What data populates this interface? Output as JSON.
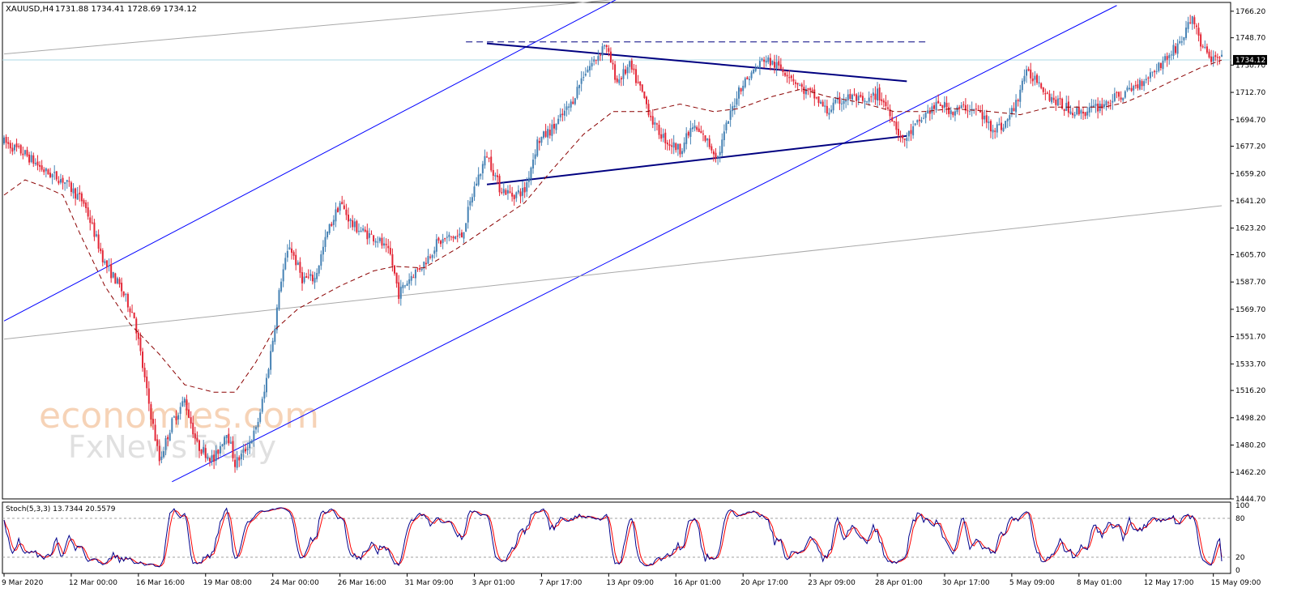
{
  "header": {
    "symbol": "XAUUSD,H4",
    "ohlc": "1731.88 1734.41 1728.69 1734.12"
  },
  "price_axis": {
    "ticks": [
      "1766.20",
      "1748.70",
      "1730.70",
      "1712.70",
      "1694.70",
      "1677.20",
      "1659.20",
      "1641.20",
      "1623.20",
      "1605.70",
      "1587.70",
      "1569.70",
      "1551.70",
      "1533.70",
      "1516.20",
      "1498.20",
      "1480.20",
      "1462.20",
      "1444.70"
    ],
    "current_price_label": "1734.12",
    "current_price": 1734.12
  },
  "time_axis": {
    "ticks": [
      "9 Mar 2020",
      "12 Mar 00:00",
      "16 Mar 16:00",
      "19 Mar 08:00",
      "24 Mar 00:00",
      "26 Mar 16:00",
      "31 Mar 09:00",
      "3 Apr 01:00",
      "7 Apr 17:00",
      "13 Apr 09:00",
      "16 Apr 01:00",
      "20 Apr 17:00",
      "23 Apr 09:00",
      "28 Apr 01:00",
      "30 Apr 17:00",
      "5 May 09:00",
      "8 May 01:00",
      "12 May 17:00",
      "15 May 09:00"
    ]
  },
  "stochastic": {
    "label": "Stoch(5,3,3) 13.7344 20.5579",
    "levels": [
      "100",
      "80",
      "20",
      "0"
    ],
    "main_color": "#00008b",
    "signal_color": "#ff0000"
  },
  "watermark": {
    "line1": "economies.com",
    "line2": "FxNewsToday"
  },
  "colors": {
    "bull_candle": "#4682b4",
    "bear_candle": "#e32636",
    "channel": "#0000ff",
    "triangle": "#000080",
    "moving_average": "#8b0000",
    "current_price_line": "#add8e6"
  },
  "chart_data": {
    "type": "candlestick",
    "symbol": "XAUUSD",
    "timeframe": "H4",
    "ylim": [
      1444.7,
      1770
    ],
    "price_path": [
      [
        0,
        1680
      ],
      [
        10,
        1672
      ],
      [
        20,
        1660
      ],
      [
        28,
        1655
      ],
      [
        38,
        1640
      ],
      [
        48,
        1600
      ],
      [
        55,
        1585
      ],
      [
        62,
        1565
      ],
      [
        68,
        1515
      ],
      [
        74,
        1470
      ],
      [
        80,
        1495
      ],
      [
        86,
        1510
      ],
      [
        92,
        1480
      ],
      [
        100,
        1470
      ],
      [
        106,
        1490
      ],
      [
        110,
        1468
      ],
      [
        114,
        1475
      ],
      [
        120,
        1490
      ],
      [
        124,
        1515
      ],
      [
        128,
        1550
      ],
      [
        132,
        1590
      ],
      [
        136,
        1612
      ],
      [
        142,
        1590
      ],
      [
        148,
        1590
      ],
      [
        154,
        1620
      ],
      [
        160,
        1640
      ],
      [
        166,
        1625
      ],
      [
        172,
        1620
      ],
      [
        178,
        1616
      ],
      [
        184,
        1605
      ],
      [
        188,
        1580
      ],
      [
        194,
        1592
      ],
      [
        200,
        1600
      ],
      [
        206,
        1613
      ],
      [
        212,
        1617
      ],
      [
        218,
        1618
      ],
      [
        224,
        1650
      ],
      [
        230,
        1672
      ],
      [
        236,
        1650
      ],
      [
        242,
        1645
      ],
      [
        248,
        1648
      ],
      [
        254,
        1680
      ],
      [
        262,
        1690
      ],
      [
        270,
        1705
      ],
      [
        276,
        1725
      ],
      [
        282,
        1735
      ],
      [
        286,
        1745
      ],
      [
        292,
        1720
      ],
      [
        298,
        1730
      ],
      [
        304,
        1712
      ],
      [
        310,
        1690
      ],
      [
        316,
        1680
      ],
      [
        322,
        1675
      ],
      [
        328,
        1690
      ],
      [
        334,
        1682
      ],
      [
        340,
        1670
      ],
      [
        344,
        1690
      ],
      [
        350,
        1715
      ],
      [
        356,
        1725
      ],
      [
        362,
        1735
      ],
      [
        368,
        1730
      ],
      [
        374,
        1725
      ],
      [
        380,
        1715
      ],
      [
        386,
        1710
      ],
      [
        392,
        1700
      ],
      [
        398,
        1707
      ],
      [
        404,
        1710
      ],
      [
        410,
        1705
      ],
      [
        416,
        1712
      ],
      [
        422,
        1700
      ],
      [
        428,
        1680
      ],
      [
        434,
        1690
      ],
      [
        440,
        1700
      ],
      [
        446,
        1705
      ],
      [
        452,
        1700
      ],
      [
        458,
        1703
      ],
      [
        464,
        1700
      ],
      [
        470,
        1690
      ],
      [
        476,
        1690
      ],
      [
        482,
        1705
      ],
      [
        486,
        1725
      ],
      [
        492,
        1722
      ],
      [
        498,
        1710
      ],
      [
        504,
        1704
      ],
      [
        510,
        1700
      ],
      [
        516,
        1700
      ],
      [
        522,
        1704
      ],
      [
        528,
        1708
      ],
      [
        534,
        1712
      ],
      [
        540,
        1718
      ],
      [
        546,
        1725
      ],
      [
        552,
        1733
      ],
      [
        558,
        1742
      ],
      [
        562,
        1750
      ],
      [
        566,
        1763
      ],
      [
        570,
        1745
      ],
      [
        574,
        1735
      ],
      [
        580,
        1734
      ]
    ],
    "moving_average": [
      [
        0,
        1645
      ],
      [
        10,
        1655
      ],
      [
        20,
        1650
      ],
      [
        28,
        1645
      ],
      [
        36,
        1620
      ],
      [
        48,
        1585
      ],
      [
        60,
        1560
      ],
      [
        74,
        1540
      ],
      [
        86,
        1520
      ],
      [
        100,
        1515
      ],
      [
        110,
        1515
      ],
      [
        120,
        1535
      ],
      [
        128,
        1555
      ],
      [
        140,
        1570
      ],
      [
        160,
        1585
      ],
      [
        176,
        1595
      ],
      [
        186,
        1598
      ],
      [
        200,
        1597
      ],
      [
        216,
        1610
      ],
      [
        232,
        1625
      ],
      [
        248,
        1640
      ],
      [
        260,
        1660
      ],
      [
        276,
        1685
      ],
      [
        290,
        1700
      ],
      [
        306,
        1700
      ],
      [
        322,
        1705
      ],
      [
        338,
        1700
      ],
      [
        350,
        1702
      ],
      [
        366,
        1710
      ],
      [
        380,
        1715
      ],
      [
        392,
        1710
      ],
      [
        408,
        1706
      ],
      [
        424,
        1700
      ],
      [
        438,
        1700
      ],
      [
        452,
        1702
      ],
      [
        470,
        1700
      ],
      [
        484,
        1698
      ],
      [
        498,
        1703
      ],
      [
        512,
        1703
      ],
      [
        524,
        1703
      ],
      [
        534,
        1706
      ],
      [
        544,
        1712
      ],
      [
        556,
        1720
      ],
      [
        570,
        1729
      ],
      [
        580,
        1734
      ]
    ],
    "trendlines": [
      {
        "name": "channel-upper",
        "from": [
          0,
          1562
        ],
        "to": [
          300,
          1780
        ]
      },
      {
        "name": "channel-lower",
        "from": [
          80,
          1456
        ],
        "to": [
          530,
          1770
        ]
      },
      {
        "name": "triangle-upper",
        "from": [
          230,
          1745
        ],
        "to": [
          430,
          1720
        ]
      },
      {
        "name": "triangle-lower",
        "from": [
          230,
          1652
        ],
        "to": [
          430,
          1684
        ]
      },
      {
        "name": "resistance-dashed",
        "from": [
          220,
          1746
        ],
        "to": [
          440,
          1746
        ]
      },
      {
        "name": "long-term-upper",
        "from": [
          0,
          1738
        ],
        "to": [
          300,
          1775
        ]
      },
      {
        "name": "long-term-lower",
        "from": [
          0,
          1550
        ],
        "to": [
          580,
          1638
        ]
      }
    ],
    "stochastic": {
      "k_period": 5,
      "d_period": 3,
      "slowing": 3,
      "main_last": 13.7344,
      "signal_last": 20.5579,
      "levels": [
        80,
        20
      ]
    }
  }
}
